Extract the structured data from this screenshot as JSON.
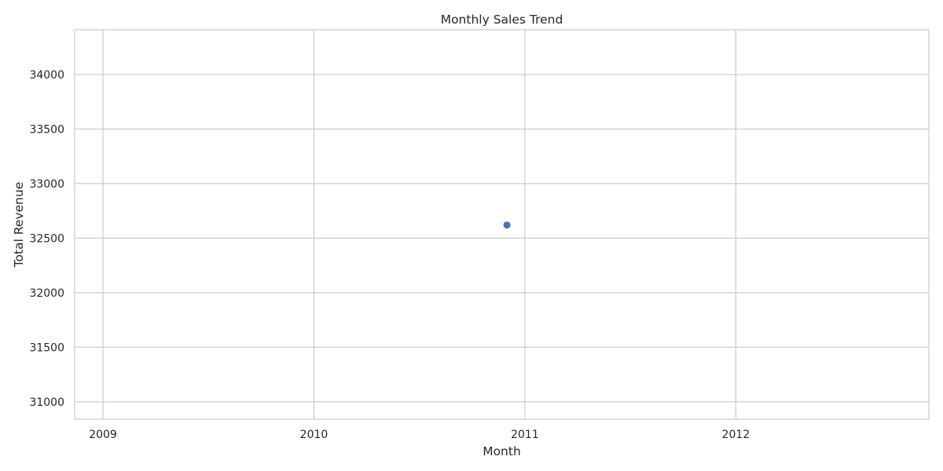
{
  "chart_data": {
    "type": "scatter",
    "title": "Monthly Sales Trend",
    "xlabel": "Month",
    "ylabel": "Total Revenue",
    "x_axis_type": "date",
    "xlim": [
      "2008-11-13",
      "2012-11-30"
    ],
    "ylim": [
      30840,
      34410
    ],
    "x_ticks": [
      {
        "value": "2009-01-01",
        "label": "2009"
      },
      {
        "value": "2010-01-01",
        "label": "2010"
      },
      {
        "value": "2011-01-01",
        "label": "2011"
      },
      {
        "value": "2012-01-01",
        "label": "2012"
      }
    ],
    "y_ticks": [
      31000,
      31500,
      32000,
      32500,
      33000,
      33500,
      34000
    ],
    "grid": true,
    "points": [
      {
        "x": "2010-12-01",
        "y": 32620
      }
    ],
    "colors": {
      "point": "#4c72b0",
      "grid": "#cccccc",
      "spine": "#cccccc",
      "text": "#262626",
      "background": "#ffffff"
    }
  }
}
